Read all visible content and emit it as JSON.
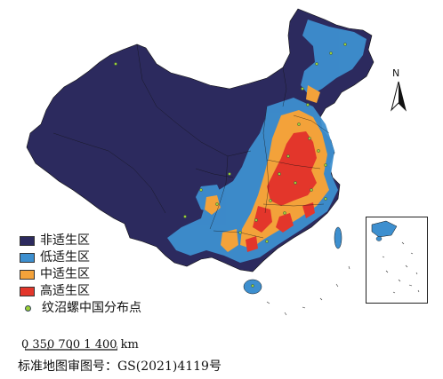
{
  "legend": {
    "items": [
      {
        "label": "非适生区",
        "color": "#2c2a5e"
      },
      {
        "label": "低适生区",
        "color": "#3d8fcf"
      },
      {
        "label": "中适生区",
        "color": "#f3a23a"
      },
      {
        "label": "高适生区",
        "color": "#e3362b"
      }
    ],
    "points": {
      "label": "纹沼螺中国分布点",
      "color": "#9bcf35"
    }
  },
  "scale": {
    "text": "0 350 700   1 400 km"
  },
  "north": {
    "label": "N"
  },
  "review_number": "标准地图审图号：GS(2021)4119号"
}
